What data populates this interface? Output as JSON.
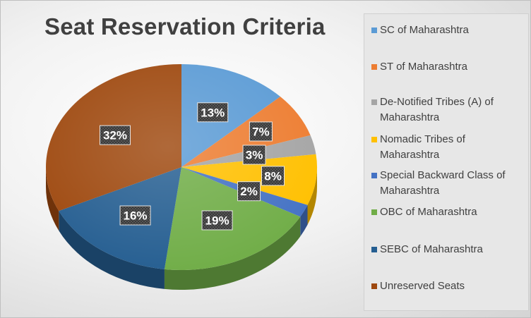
{
  "chart_data": {
    "type": "pie",
    "title": "Seat Reservation Criteria",
    "categories": [
      "SC of Maharashtra",
      "ST of Maharashtra",
      "De-Notified Tribes (A) of Maharashtra",
      "Nomadic Tribes of Maharashtra",
      "Special Backward Class of Maharashtra",
      "OBC of Maharashtra",
      "SEBC of Maharashtra",
      "Unreserved Seats"
    ],
    "values": [
      13,
      7,
      3,
      8,
      2,
      19,
      16,
      32
    ],
    "value_labels": [
      "13%",
      "7%",
      "3%",
      "8%",
      "2%",
      "19%",
      "16%",
      "32%"
    ],
    "colors": [
      "#5b9bd5",
      "#ed7d31",
      "#a5a5a5",
      "#ffc000",
      "#4472c4",
      "#70ad47",
      "#255e91",
      "#9e480e"
    ],
    "legend_position": "right",
    "style": "3d-tilted"
  }
}
